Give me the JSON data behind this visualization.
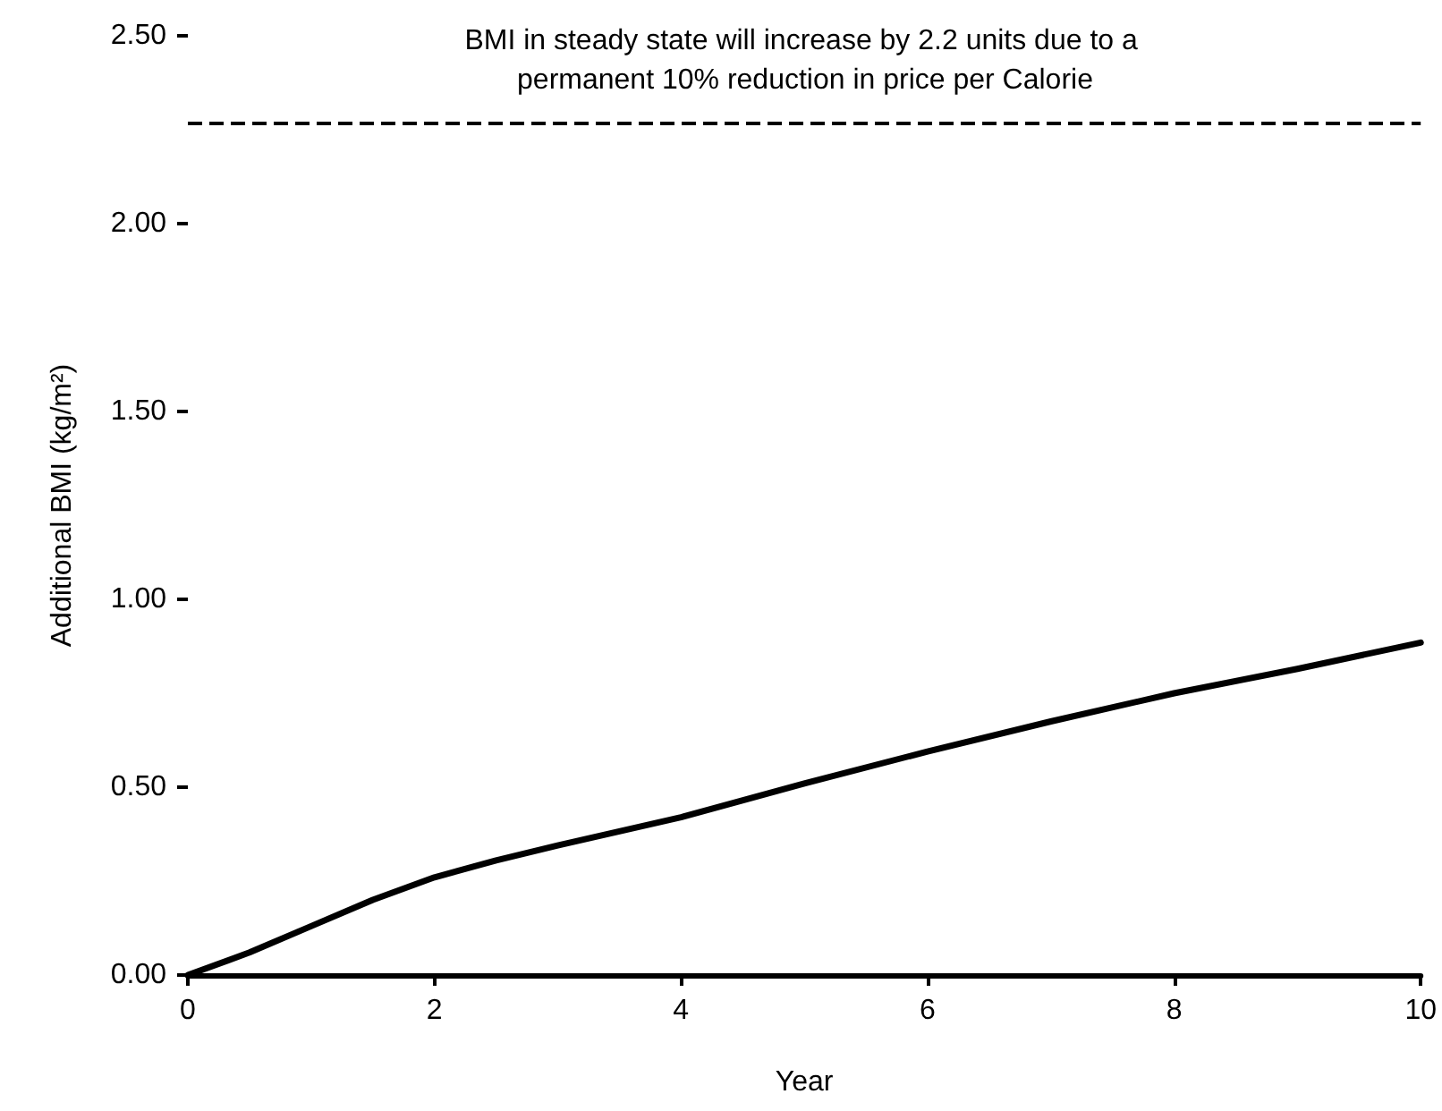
{
  "chart_data": {
    "type": "line",
    "xlabel": "Year",
    "ylabel": "Additional BMI (kg/m²)",
    "x": [
      0,
      0.5,
      1,
      1.5,
      2,
      2.5,
      3,
      4,
      5,
      6,
      7,
      8,
      9,
      10
    ],
    "series": [
      {
        "color": "#000000",
        "values": [
          0,
          0.06,
          0.13,
          0.2,
          0.26,
          0.305,
          0.345,
          0.42,
          0.51,
          0.595,
          0.675,
          0.75,
          0.815,
          0.885
        ]
      }
    ],
    "xlim": [
      0,
      10
    ],
    "xticks": [
      0,
      2,
      4,
      6,
      8,
      10
    ],
    "ylim": [
      0,
      2.5
    ],
    "yticks": [
      {
        "value": 0,
        "label": "0.00"
      },
      {
        "value": 0.5,
        "label": "0.50"
      },
      {
        "value": 1,
        "label": "1.00"
      },
      {
        "value": 1.5,
        "label": "1.50"
      },
      {
        "value": 2,
        "label": "2.00"
      },
      {
        "value": 2.5,
        "label": "2.50"
      }
    ],
    "ref_lines": [
      {
        "axis": "y",
        "value": 2.27,
        "color": "#000000",
        "line_style": "dashed"
      }
    ],
    "annotations": [
      "BMI in steady state will increase by 2.2 units due to a permanent 10% reduction in price per Calorie"
    ],
    "grid": false,
    "marker": "none",
    "line_style": "solid"
  }
}
